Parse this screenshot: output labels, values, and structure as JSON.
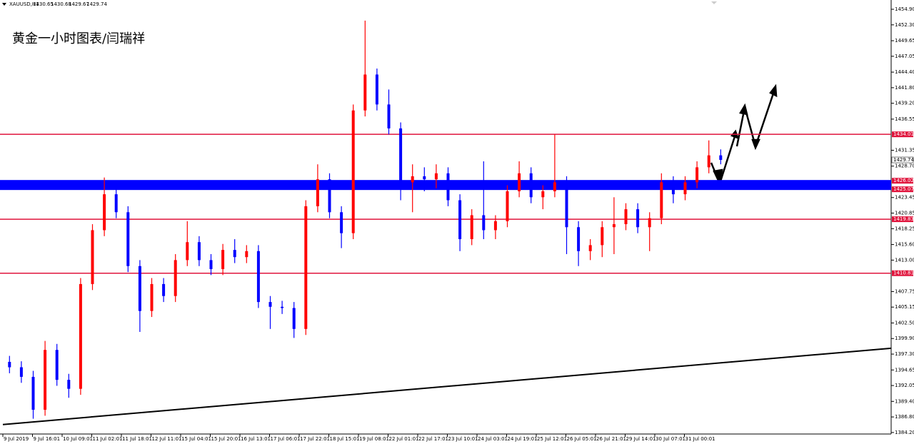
{
  "chart_data": {
    "type": "candlestick",
    "header": "XAUUSD,H1",
    "header_ohlc": [
      1430.65,
      1430.68,
      1429.67,
      1429.74
    ],
    "title": "黄金一小时图表/闫瑞祥",
    "ylim": [
      1383.95,
      1456.45
    ],
    "yticks": [
      {
        "value": 1454.9,
        "label": "1454.90"
      },
      {
        "value": 1452.3,
        "label": "1452.30"
      },
      {
        "value": 1449.65,
        "label": "1449.65"
      },
      {
        "value": 1447.05,
        "label": "1447.05"
      },
      {
        "value": 1444.4,
        "label": "1444.40"
      },
      {
        "value": 1441.8,
        "label": "1441.80"
      },
      {
        "value": 1439.2,
        "label": "1439.20"
      },
      {
        "value": 1436.55,
        "label": "1436.55"
      },
      {
        "value": 1431.35,
        "label": "1431.35"
      },
      {
        "value": 1428.7,
        "label": "1428.70"
      },
      {
        "value": 1423.45,
        "label": "1423.45"
      },
      {
        "value": 1420.85,
        "label": "1420.85"
      },
      {
        "value": 1418.25,
        "label": "1418.25"
      },
      {
        "value": 1415.6,
        "label": "1415.60"
      },
      {
        "value": 1413,
        "label": "1413.00"
      },
      {
        "value": 1407.75,
        "label": "1407.75"
      },
      {
        "value": 1405.15,
        "label": "1405.15"
      },
      {
        "value": 1402.5,
        "label": "1402.50"
      },
      {
        "value": 1399.9,
        "label": "1399.90"
      },
      {
        "value": 1397.3,
        "label": "1397.30"
      },
      {
        "value": 1394.65,
        "label": "1394.65"
      },
      {
        "value": 1392.05,
        "label": "1392.05"
      },
      {
        "value": 1389.4,
        "label": "1389.40"
      },
      {
        "value": 1386.8,
        "label": "1386.80"
      },
      {
        "value": 1384.2,
        "label": "1384.20"
      }
    ],
    "x_labels": [
      "9 Jul 2019",
      "9 Jul 16:01",
      "10 Jul 09:01",
      "11 Jul 02:01",
      "11 Jul 18:01",
      "12 Jul 11:01",
      "15 Jul 04:01",
      "15 Jul 20:01",
      "16 Jul 13:01",
      "17 Jul 06:01",
      "17 Jul 22:01",
      "18 Jul 15:01",
      "19 Jul 08:01",
      "22 Jul 01:01",
      "22 Jul 17:01",
      "23 Jul 10:01",
      "24 Jul 03:01",
      "24 Jul 19:01",
      "25 Jul 12:01",
      "26 Jul 05:01",
      "26 Jul 21:01",
      "29 Jul 14:01",
      "30 Jul 07:01",
      "31 Jul 00:01"
    ],
    "up_color": "#ff0000",
    "down_color": "#0000ff",
    "open": [
      1396,
      1395.1,
      1393.5,
      1388,
      1398,
      1393,
      1391.5,
      1409,
      1418,
      1424,
      1421,
      1412,
      1404.5,
      1409,
      1407,
      1413,
      1416,
      1413,
      1411.5,
      1414.7,
      1413.5,
      1414.5,
      1406,
      1405.2,
      1405,
      1401.5,
      1422,
      1426.5,
      1421,
      1417.5,
      1438,
      1444,
      1439,
      1435,
      1426,
      1427,
      1426.5,
      1427.5,
      1423,
      1416.5,
      1420.5,
      1418,
      1419.5,
      1424.5,
      1427.5,
      1423.5,
      1424.5,
      1426,
      1418.5,
      1414.5,
      1415.5,
      1418.5,
      1419,
      1421.5,
      1418.5,
      1420,
      1426,
      1424,
      1426,
      1428.5,
      1430.5
    ],
    "high": [
      1397,
      1396.1,
      1394.5,
      1399.5,
      1399,
      1394,
      1410,
      1419,
      1426.8,
      1425,
      1422,
      1413,
      1410,
      1410,
      1414,
      1419.5,
      1417,
      1414,
      1415.7,
      1416.5,
      1415.5,
      1415.5,
      1407,
      1406.2,
      1406,
      1423,
      1429,
      1427.5,
      1422,
      1439,
      1453,
      1445,
      1441.5,
      1436,
      1429,
      1428.5,
      1429,
      1428.5,
      1424,
      1421.5,
      1429.5,
      1420.5,
      1425.5,
      1429.5,
      1428.5,
      1425.5,
      1434,
      1427,
      1419.5,
      1416.5,
      1419.5,
      1423.5,
      1422.5,
      1422.5,
      1421,
      1427.5,
      1427,
      1427,
      1429.5,
      1433,
      1431.5
    ],
    "low": [
      1394.1,
      1392.5,
      1386.5,
      1387,
      1392,
      1390,
      1390.5,
      1408,
      1417,
      1420,
      1411,
      1401,
      1403.5,
      1406,
      1406,
      1412,
      1412,
      1410.5,
      1410.5,
      1412.5,
      1412.5,
      1405,
      1401.5,
      1404,
      1400,
      1400.5,
      1421,
      1420,
      1415,
      1416.5,
      1437,
      1438,
      1434,
      1423,
      1421,
      1424.5,
      1425,
      1422,
      1414.5,
      1415.5,
      1416.5,
      1416.5,
      1418.5,
      1423.5,
      1422.5,
      1421.5,
      1423.5,
      1414,
      1412,
      1413,
      1413.5,
      1414,
      1418,
      1417.5,
      1414.5,
      1419,
      1422.5,
      1423,
      1425,
      1427.5,
      1429
    ],
    "close": [
      1395.1,
      1393.5,
      1388,
      1398,
      1393,
      1391.5,
      1409,
      1418,
      1424,
      1421,
      1412,
      1404.5,
      1409,
      1407,
      1413,
      1416,
      1413,
      1411.5,
      1414.7,
      1413.5,
      1414.5,
      1406,
      1405.2,
      1405,
      1401.5,
      1422,
      1426.5,
      1421,
      1417.5,
      1438,
      1444,
      1439,
      1435,
      1426,
      1427,
      1426.5,
      1427.5,
      1423,
      1416.5,
      1420.5,
      1418,
      1419.5,
      1424.5,
      1427.5,
      1423.5,
      1424.5,
      1426,
      1418.5,
      1414.5,
      1415.5,
      1418.5,
      1419,
      1421.5,
      1418.5,
      1420,
      1426,
      1424,
      1426,
      1428.5,
      1430.5,
      1429.74
    ],
    "levels": [
      {
        "value": 1434.01,
        "color": "#e0143c"
      },
      {
        "value": 1419.83,
        "color": "#e0143c"
      },
      {
        "value": 1410.81,
        "color": "#e0143c"
      }
    ],
    "band": {
      "values": [
        1426.02,
        1425.07
      ],
      "color": "#0000ff",
      "label_color": "#e0143c"
    },
    "trendline": {
      "values": [
        1385.53,
        1398.28
      ],
      "color": "#000000"
    }
  }
}
